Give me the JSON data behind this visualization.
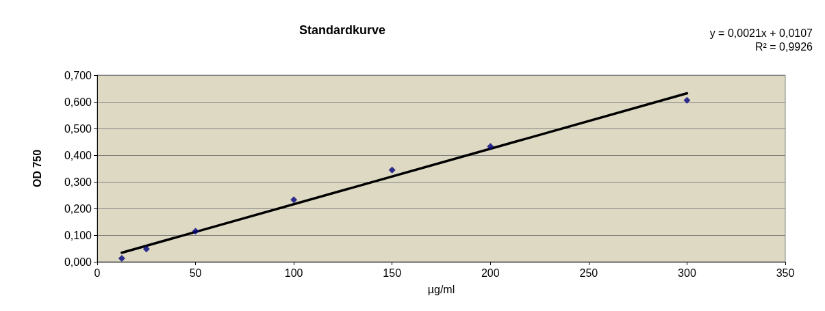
{
  "chart_data": {
    "type": "scatter",
    "title": "Standardkurve",
    "xlabel": "µg/ml",
    "ylabel": "OD 750",
    "annotations": [
      "y = 0,0021x + 0,0107",
      "R² = 0,9926"
    ],
    "series": [
      {
        "color": "#000080",
        "marker": "diamond",
        "x": [
          12.5,
          25,
          50,
          100,
          150,
          200,
          300
        ],
        "values": [
          0.013,
          0.048,
          0.115,
          0.233,
          0.344,
          0.433,
          0.606
        ]
      },
      {
        "type": "line",
        "color": "#000000",
        "marker": "none",
        "x": [
          12.5,
          300
        ],
        "values": [
          0.034,
          0.632
        ]
      }
    ],
    "xlim": [
      0,
      350
    ],
    "xticks": [
      0,
      50,
      100,
      150,
      200,
      250,
      300,
      350
    ],
    "ylim": [
      0,
      0.7
    ],
    "yticks": [
      {
        "value": 0,
        "label": "0,000"
      },
      {
        "value": 0.1,
        "label": "0,100"
      },
      {
        "value": 0.2,
        "label": "0,200"
      },
      {
        "value": 0.3,
        "label": "0,300"
      },
      {
        "value": 0.4,
        "label": "0,400"
      },
      {
        "value": 0.5,
        "label": "0,500"
      },
      {
        "value": 0.6,
        "label": "0,600"
      },
      {
        "value": 0.7,
        "label": "0,700"
      }
    ],
    "grid": "y"
  }
}
